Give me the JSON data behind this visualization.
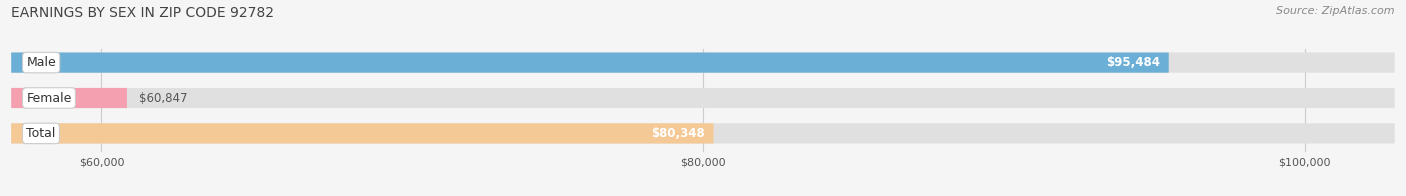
{
  "title": "EARNINGS BY SEX IN ZIP CODE 92782",
  "source": "Source: ZipAtlas.com",
  "categories": [
    "Male",
    "Female",
    "Total"
  ],
  "values": [
    95484,
    60847,
    80348
  ],
  "bar_colors": [
    "#6baed6",
    "#f4a0b0",
    "#f5c996"
  ],
  "value_labels": [
    "$95,484",
    "$60,847",
    "$80,348"
  ],
  "xmin": 57000,
  "xmax": 103000,
  "xticks": [
    60000,
    80000,
    100000
  ],
  "xtick_labels": [
    "$60,000",
    "$80,000",
    "$100,000"
  ],
  "bar_height": 0.55,
  "bg_color": "#f5f5f5",
  "bar_bg_color": "#e0e0e0",
  "title_fontsize": 10,
  "source_fontsize": 8,
  "label_fontsize": 9,
  "value_fontsize": 8.5
}
